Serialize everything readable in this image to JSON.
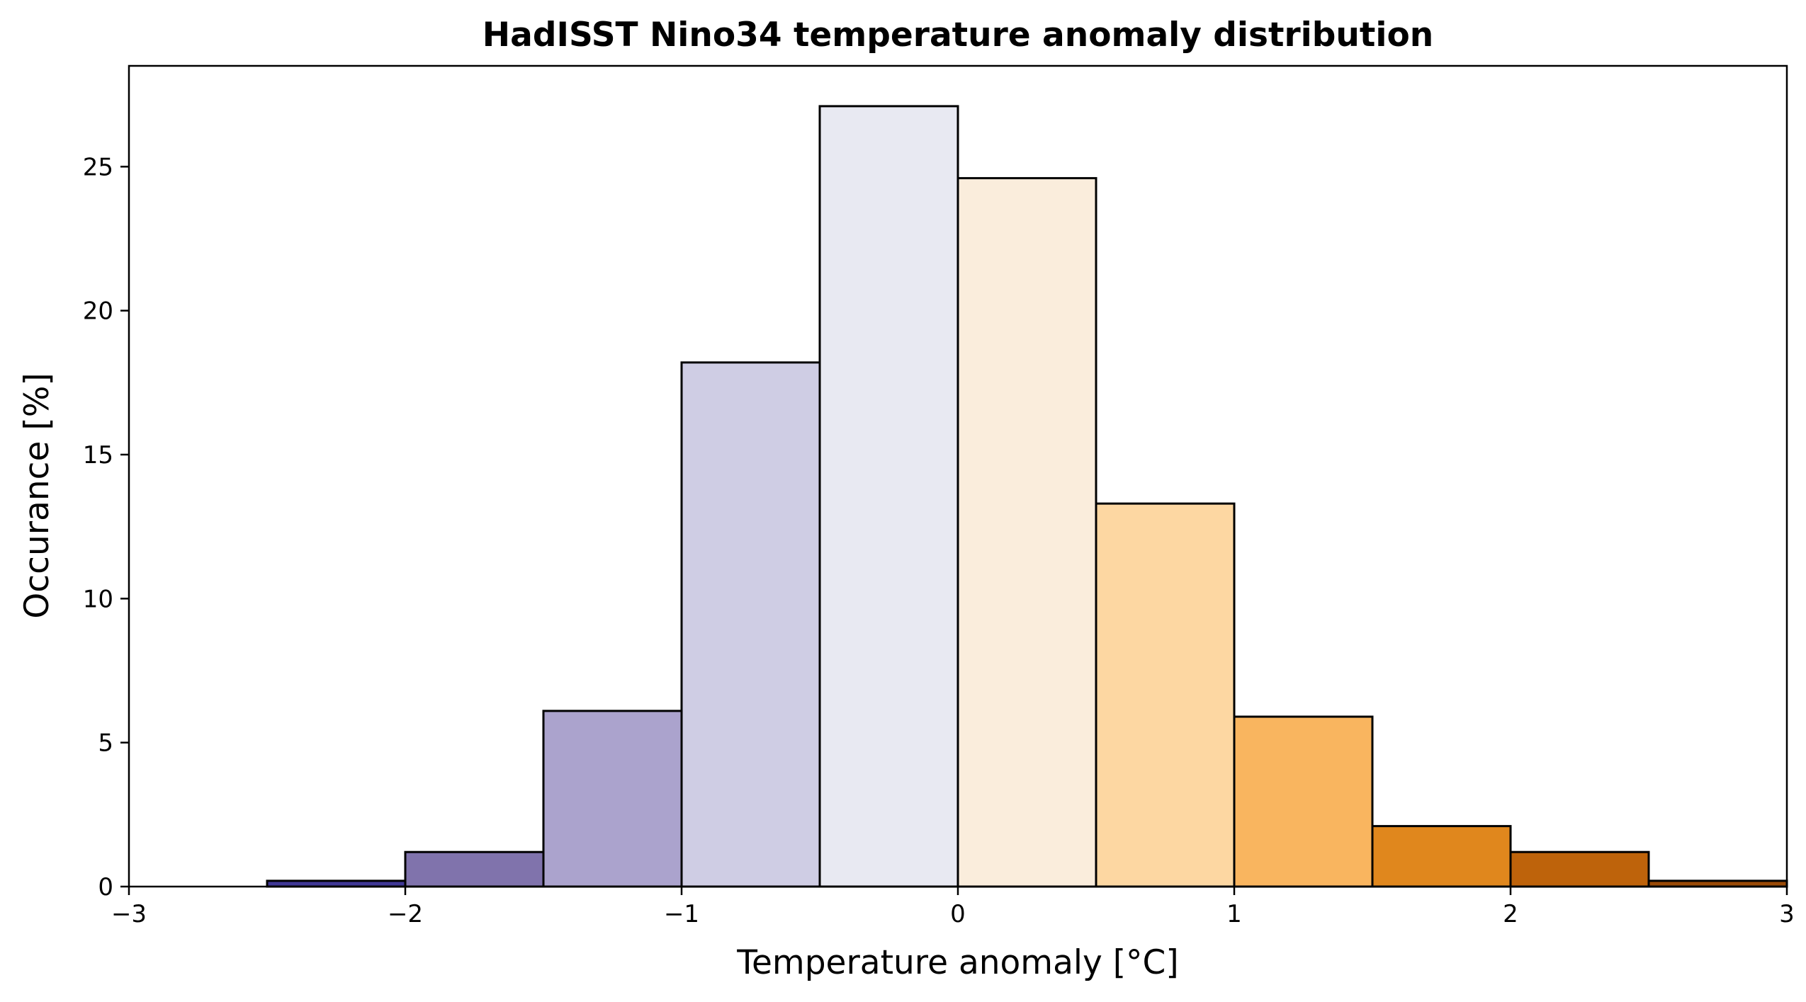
{
  "chart_data": {
    "type": "bar",
    "title": "HadISST Nino34 temperature anomaly distribution",
    "xlabel": "Temperature anomaly [°C]",
    "ylabel": "Occurance [%]",
    "xlim": [
      -3,
      3
    ],
    "ylim": [
      0,
      28.5
    ],
    "xticks": [
      -3,
      -2,
      -1,
      0,
      1,
      2,
      3
    ],
    "xtick_labels": [
      "−3",
      "−2",
      "−1",
      "0",
      "1",
      "2",
      "3"
    ],
    "yticks": [
      0,
      5,
      10,
      15,
      20,
      25
    ],
    "ytick_labels": [
      "0",
      "5",
      "10",
      "15",
      "20",
      "25"
    ],
    "grid": false,
    "bins": [
      {
        "x0": -2.5,
        "x1": -2.0,
        "value": 0.2,
        "color": "#3f3795"
      },
      {
        "x0": -2.0,
        "x1": -1.5,
        "value": 1.2,
        "color": "#8073ac"
      },
      {
        "x0": -1.5,
        "x1": -1.0,
        "value": 6.1,
        "color": "#aba3cd"
      },
      {
        "x0": -1.0,
        "x1": -0.5,
        "value": 18.2,
        "color": "#cfcde4"
      },
      {
        "x0": -0.5,
        "x1": 0.0,
        "value": 27.1,
        "color": "#e8e9f2"
      },
      {
        "x0": 0.0,
        "x1": 0.5,
        "value": 24.6,
        "color": "#faeddc"
      },
      {
        "x0": 0.5,
        "x1": 1.0,
        "value": 13.3,
        "color": "#fdd7a2"
      },
      {
        "x0": 1.0,
        "x1": 1.5,
        "value": 5.9,
        "color": "#f9b55f"
      },
      {
        "x0": 1.5,
        "x1": 2.0,
        "value": 2.1,
        "color": "#e0871d"
      },
      {
        "x0": 2.0,
        "x1": 2.5,
        "value": 1.2,
        "color": "#be630b"
      },
      {
        "x0": 2.5,
        "x1": 3.0,
        "value": 0.2,
        "color": "#9a4a07"
      }
    ]
  }
}
